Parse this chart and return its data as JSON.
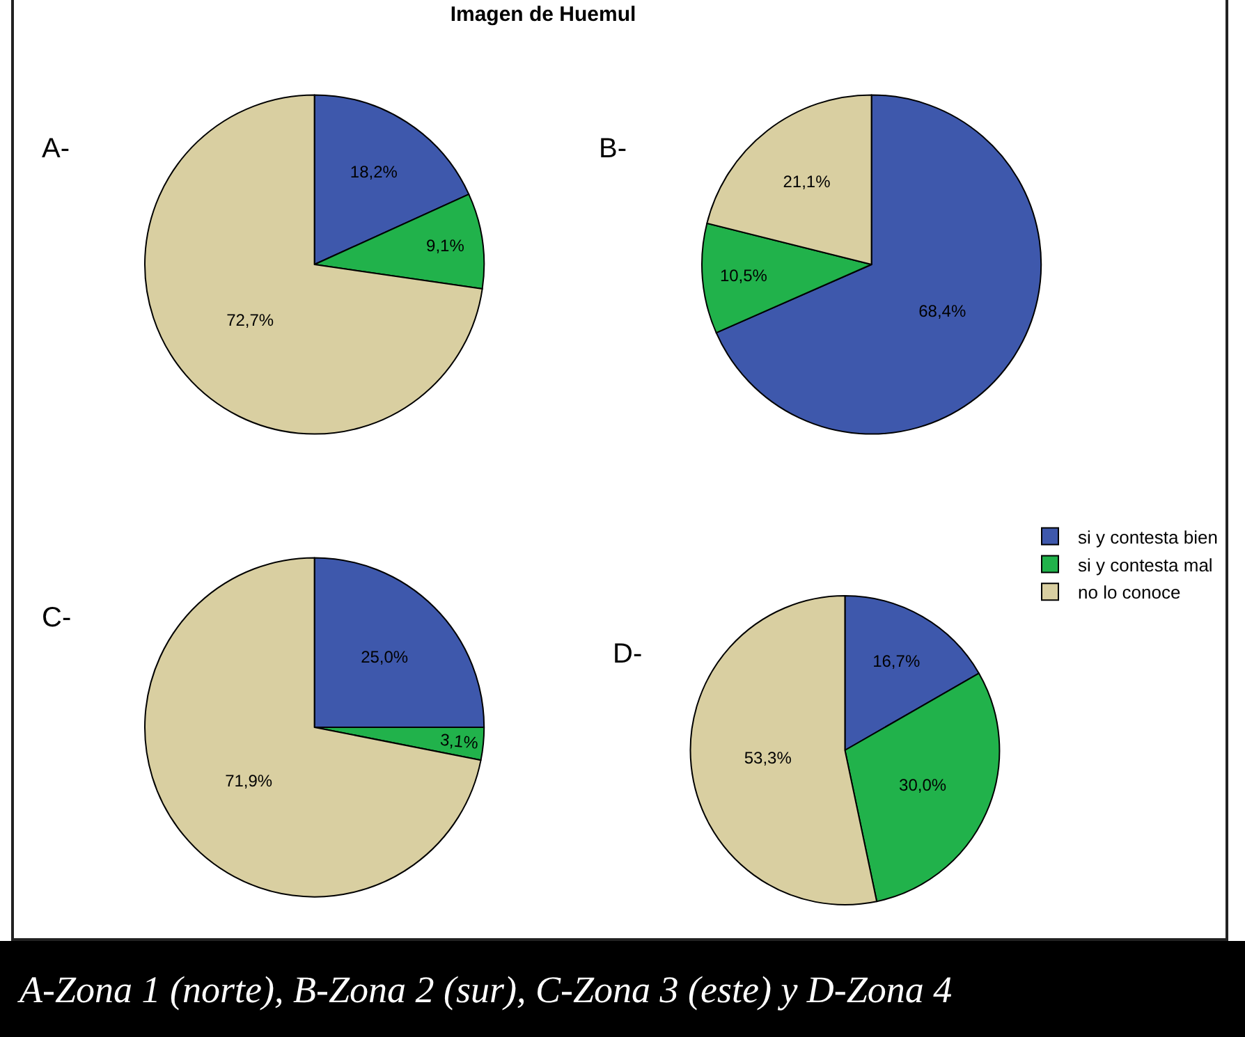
{
  "chart_data": [
    {
      "type": "pie",
      "title": "Imagen de Huemul",
      "annotations": [
        "A-"
      ],
      "categories": [
        null,
        null,
        null
      ],
      "values": [
        18.2,
        9.1,
        72.7
      ],
      "value_labels": [
        "18,2%",
        "9,1%",
        "72,7%"
      ],
      "colors": [
        "#3e58ac",
        "#21b24b",
        "#d9cfa1"
      ],
      "legend": false
    },
    {
      "type": "pie",
      "annotations": [
        "B-"
      ],
      "categories": [
        null,
        null,
        null
      ],
      "values": [
        68.4,
        10.5,
        21.1
      ],
      "value_labels": [
        "68,4%",
        "10,5%",
        "21,1%"
      ],
      "colors": [
        "#3e58ac",
        "#21b24b",
        "#d9cfa1"
      ],
      "legend": false
    },
    {
      "type": "pie",
      "annotations": [
        "C-"
      ],
      "categories": [
        null,
        null,
        null
      ],
      "values": [
        25.0,
        3.1,
        71.9
      ],
      "value_labels": [
        "25,0%",
        "3,1%",
        "71,9%"
      ],
      "colors": [
        "#3e58ac",
        "#21b24b",
        "#d9cfa1"
      ],
      "legend": false
    },
    {
      "type": "pie",
      "annotations": [
        "D-",
        "A-Zona 1 (norte), B-Zona 2 (sur), C-Zona 3 (este) y D-Zona 4"
      ],
      "categories": [
        "si y contesta bien",
        "si y contesta mal",
        "no lo conoce"
      ],
      "values": [
        16.7,
        30.0,
        53.3
      ],
      "value_labels": [
        "16,7%",
        "30,0%",
        "53,3%"
      ],
      "colors": [
        "#3e58ac",
        "#21b24b",
        "#d9cfa1"
      ],
      "legend": "top right"
    }
  ]
}
